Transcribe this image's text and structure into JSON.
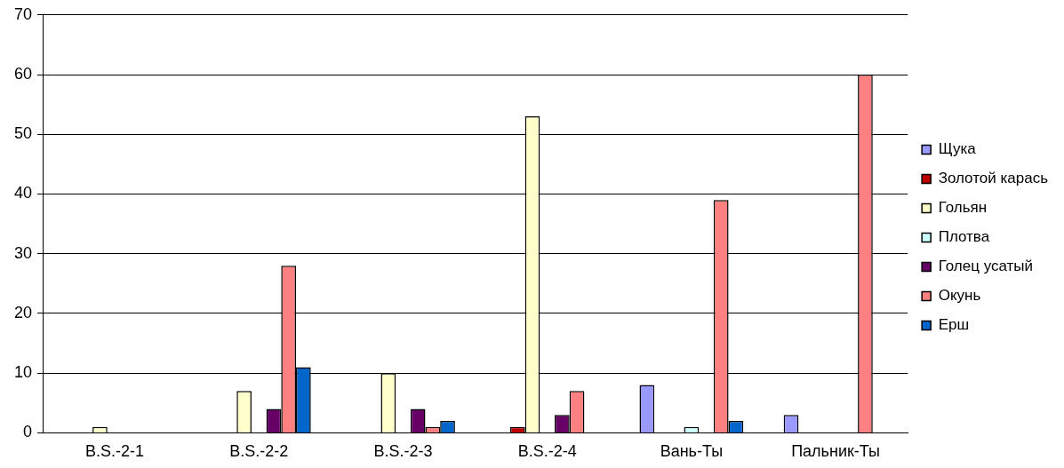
{
  "chart_data": {
    "type": "bar",
    "categories": [
      "B.S.-2-1",
      "B.S.-2-2",
      "B.S.-2-3",
      "B.S.-2-4",
      "Вань-Ты",
      "Пальник-Ты"
    ],
    "series": [
      {
        "name": "Щука",
        "color": "#9999ff",
        "values": [
          null,
          null,
          null,
          null,
          8,
          3
        ]
      },
      {
        "name": "Золотой карась",
        "color": "#c00000",
        "values": [
          null,
          null,
          null,
          1,
          null,
          null
        ]
      },
      {
        "name": "Гольян",
        "color": "#ffffcc",
        "values": [
          1,
          7,
          10,
          53,
          null,
          null
        ]
      },
      {
        "name": "Плотва",
        "color": "#ccffff",
        "values": [
          null,
          null,
          null,
          null,
          1,
          null
        ]
      },
      {
        "name": "Голец усатый",
        "color": "#660066",
        "values": [
          null,
          4,
          4,
          3,
          null,
          null
        ]
      },
      {
        "name": "Окунь",
        "color": "#ff8080",
        "values": [
          null,
          28,
          1,
          7,
          39,
          60
        ]
      },
      {
        "name": "Ерш",
        "color": "#0066cc",
        "values": [
          null,
          11,
          2,
          null,
          2,
          null
        ]
      }
    ],
    "ylim": [
      0,
      70
    ],
    "yticks": [
      0,
      10,
      20,
      30,
      40,
      50,
      60,
      70
    ],
    "grid": "y",
    "legend": "right"
  }
}
